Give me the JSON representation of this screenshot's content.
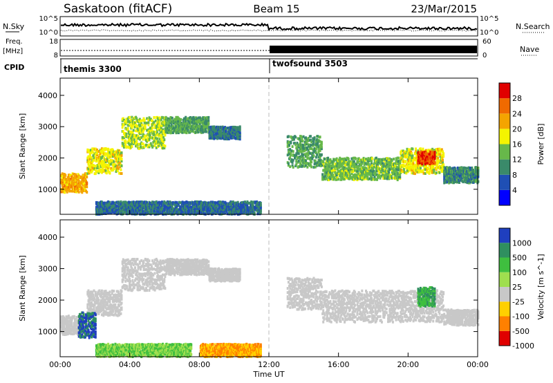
{
  "header": {
    "site": "Saskatoon (fitACF)",
    "beam": "Beam 15",
    "date": "23/Mar/2015"
  },
  "strips": {
    "nsky_label": "N.Sky",
    "nsky_ticks": [
      "10^5",
      "10^0"
    ],
    "nsearch_label": "N.Search",
    "nsearch_ticks": [
      "10^5",
      "10^0"
    ],
    "freq_label_1": "Freq.",
    "freq_label_2": "[MHz]",
    "freq_ticks": [
      "18",
      "8"
    ],
    "nave_label": "Nave",
    "nave_ticks": [
      "60",
      "0"
    ],
    "cpid_label": "CPID",
    "cpid_modes": [
      "themis 3300",
      "twofsound 3503"
    ]
  },
  "chart_data": [
    {
      "type": "heatmap",
      "title": "",
      "ylabel": "Slant Range [km]",
      "xlabel": "",
      "x_ticks": [
        "00:00",
        "04:00",
        "08:00",
        "12:00",
        "16:00",
        "20:00",
        "00:00"
      ],
      "y_ticks": [
        1000,
        2000,
        3000,
        4000
      ],
      "ylim": [
        200,
        4550
      ],
      "colorbar": {
        "label": "Power [dB]",
        "ticks": [
          4,
          8,
          12,
          16,
          20,
          24,
          28
        ],
        "colors": [
          "#0000ff",
          "#1f4fb4",
          "#3a8a6a",
          "#67b84a",
          "#f4f400",
          "#f4a400",
          "#f06a00",
          "#e00000"
        ]
      },
      "bands": [
        {
          "t0": 0.0,
          "t1": 1.5,
          "r0": 900,
          "r1": 1500,
          "db": 22
        },
        {
          "t0": 1.5,
          "t1": 3.5,
          "r0": 1500,
          "r1": 2300,
          "db": 18
        },
        {
          "t0": 3.5,
          "t1": 6.0,
          "r0": 2300,
          "r1": 3300,
          "db": 16
        },
        {
          "t0": 6.0,
          "t1": 8.5,
          "r0": 2800,
          "r1": 3300,
          "db": 12
        },
        {
          "t0": 8.5,
          "t1": 10.3,
          "r0": 2600,
          "r1": 3000,
          "db": 9
        },
        {
          "t0": 13.0,
          "t1": 15.0,
          "r0": 1700,
          "r1": 2700,
          "db": 12
        },
        {
          "t0": 15.0,
          "t1": 19.5,
          "r0": 1300,
          "r1": 2000,
          "db": 14
        },
        {
          "t0": 19.5,
          "t1": 22.0,
          "r0": 1500,
          "r1": 2300,
          "db": 18
        },
        {
          "t0": 20.5,
          "t1": 21.5,
          "r0": 1800,
          "r1": 2200,
          "db": 28
        },
        {
          "t0": 22.0,
          "t1": 24.0,
          "r0": 1200,
          "r1": 1700,
          "db": 10
        },
        {
          "t0": 2.0,
          "t1": 11.5,
          "r0": 200,
          "r1": 600,
          "db": 8
        }
      ]
    },
    {
      "type": "heatmap",
      "title": "",
      "ylabel": "Slant Range [km]",
      "xlabel": "Time UT",
      "x_ticks": [
        "00:00",
        "04:00",
        "08:00",
        "12:00",
        "16:00",
        "20:00",
        "00:00"
      ],
      "y_ticks": [
        1000,
        2000,
        3000,
        4000
      ],
      "ylim": [
        200,
        4550
      ],
      "colorbar": {
        "label": "Velocity [m s^-1]",
        "ticks": [
          1000,
          500,
          100,
          25,
          -25,
          -100,
          -500,
          -1000
        ],
        "colors": [
          "#1f3fbf",
          "#2f8f5f",
          "#3fbf3f",
          "#9fdf4f",
          "#c8c8c8",
          "#ffd000",
          "#ff8000",
          "#e00000"
        ]
      },
      "bands": [
        {
          "t0": 0.0,
          "t1": 1.5,
          "r0": 900,
          "r1": 1500,
          "v": 0
        },
        {
          "t0": 1.5,
          "t1": 3.5,
          "r0": 1500,
          "r1": 2300,
          "v": 0
        },
        {
          "t0": 3.5,
          "t1": 6.0,
          "r0": 2300,
          "r1": 3300,
          "v": 0
        },
        {
          "t0": 6.0,
          "t1": 8.5,
          "r0": 2800,
          "r1": 3300,
          "v": 0
        },
        {
          "t0": 8.5,
          "t1": 10.3,
          "r0": 2600,
          "r1": 3000,
          "v": 0
        },
        {
          "t0": 13.0,
          "t1": 15.0,
          "r0": 1700,
          "r1": 2700,
          "v": 0
        },
        {
          "t0": 15.0,
          "t1": 22.0,
          "r0": 1300,
          "r1": 2300,
          "v": 0
        },
        {
          "t0": 20.5,
          "t1": 21.5,
          "r0": 1800,
          "r1": 2400,
          "v": 500
        },
        {
          "t0": 22.0,
          "t1": 24.0,
          "r0": 1200,
          "r1": 1700,
          "v": 0
        },
        {
          "t0": 1.0,
          "t1": 2.0,
          "r0": 800,
          "r1": 1600,
          "v": 1000
        },
        {
          "t0": 2.0,
          "t1": 7.5,
          "r0": 200,
          "r1": 600,
          "v": 100
        },
        {
          "t0": 8.0,
          "t1": 11.5,
          "r0": 200,
          "r1": 600,
          "v": -100
        }
      ]
    }
  ]
}
